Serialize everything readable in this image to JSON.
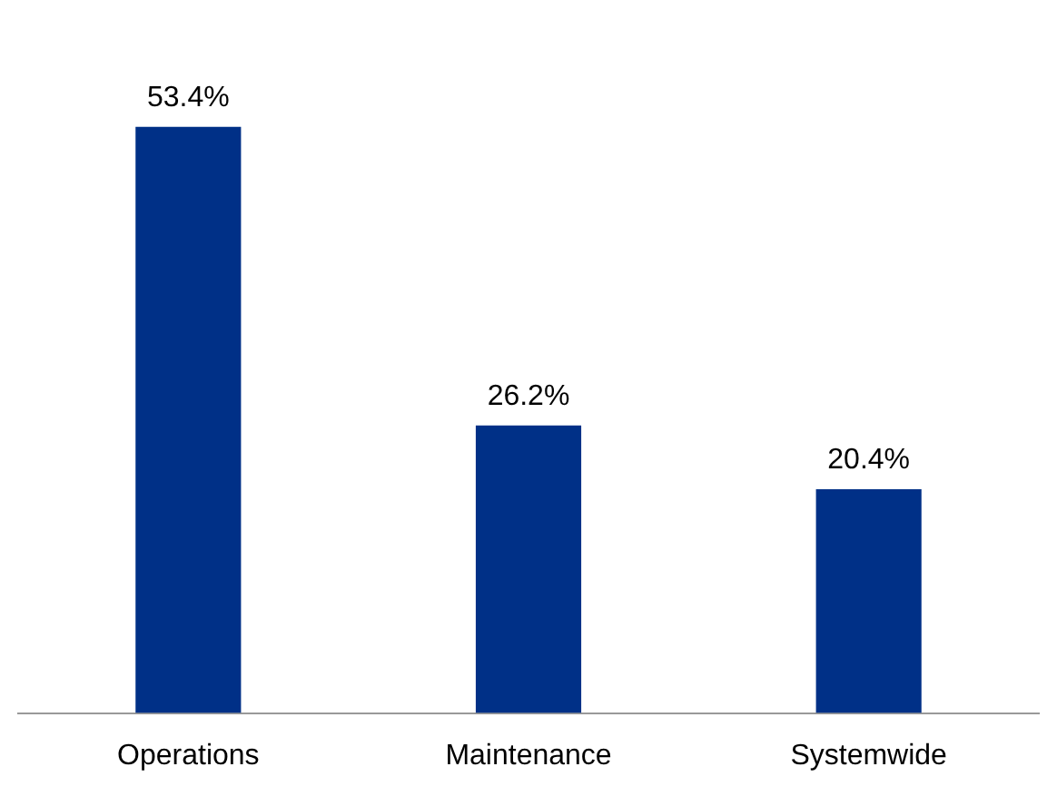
{
  "chart_data": {
    "type": "bar",
    "categories": [
      "Operations",
      "Maintenance",
      "Systemwide"
    ],
    "values": [
      53.4,
      26.2,
      20.4
    ],
    "color": "#003087",
    "value_labels": [
      "53.4%",
      "26.2%",
      "20.4%"
    ],
    "grid": false,
    "legend": false,
    "tick_labels": "x"
  }
}
